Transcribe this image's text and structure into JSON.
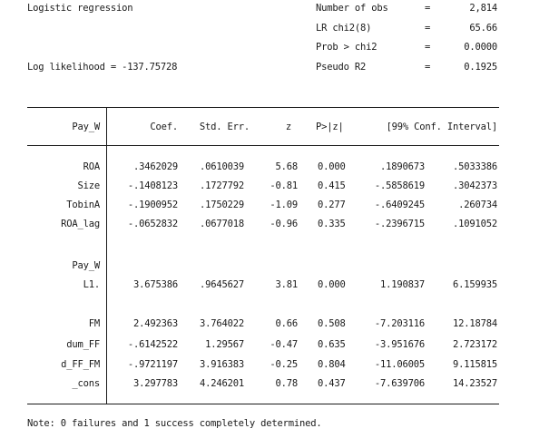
{
  "header": {
    "title": "Logistic regression",
    "log_likelihood": "Log likelihood = -137.75728",
    "stats": [
      {
        "label": "Number of obs",
        "eq": "=",
        "value": "2,814"
      },
      {
        "label": "LR chi2(8)",
        "eq": "=",
        "value": "65.66"
      },
      {
        "label": "Prob > chi2",
        "eq": "=",
        "value": "0.0000"
      },
      {
        "label": "Pseudo R2",
        "eq": "=",
        "value": "0.1925"
      }
    ]
  },
  "table": {
    "headers": {
      "depvar": "Pay_W",
      "coef": "Coef.",
      "se": "Std. Err.",
      "z": "z",
      "p": "P>|z|",
      "ci": "[99% Conf. Interval]"
    },
    "group1": [
      {
        "var": "ROA",
        "coef": ".3462029",
        "se": ".0610039",
        "z": "5.68",
        "p": "0.000",
        "lo": ".1890673",
        "hi": ".5033386"
      },
      {
        "var": "Size",
        "coef": "-.1408123",
        "se": ".1727792",
        "z": "-0.81",
        "p": "0.415",
        "lo": "-.5858619",
        "hi": ".3042373"
      },
      {
        "var": "TobinA",
        "coef": "-.1900952",
        "se": ".1750229",
        "z": "-1.09",
        "p": "0.277",
        "lo": "-.6409245",
        "hi": ".260734"
      },
      {
        "var": "ROA_lag",
        "coef": "-.0652832",
        "se": ".0677018",
        "z": "-0.96",
        "p": "0.335",
        "lo": "-.2396715",
        "hi": ".1091052"
      }
    ],
    "lag_block": {
      "var_header": "Pay_W",
      "row": {
        "var": "L1.",
        "coef": "3.675386",
        "se": ".9645627",
        "z": "3.81",
        "p": "0.000",
        "lo": "1.190837",
        "hi": "6.159935"
      }
    },
    "group2": [
      {
        "var": "FM",
        "coef": "2.492363",
        "se": "3.764022",
        "z": "0.66",
        "p": "0.508",
        "lo": "-7.203116",
        "hi": "12.18784"
      },
      {
        "var": "dum_FF",
        "coef": "-.6142522",
        "se": "1.29567",
        "z": "-0.47",
        "p": "0.635",
        "lo": "-3.951676",
        "hi": "2.723172"
      },
      {
        "var": "d_FF_FM",
        "coef": "-.9721197",
        "se": "3.916383",
        "z": "-0.25",
        "p": "0.804",
        "lo": "-11.06005",
        "hi": "9.115815"
      },
      {
        "var": "_cons",
        "coef": "3.297783",
        "se": "4.246201",
        "z": "0.78",
        "p": "0.437",
        "lo": "-7.639706",
        "hi": "14.23527"
      }
    ]
  },
  "note": "Note: 0 failures and 1 success completely determined."
}
